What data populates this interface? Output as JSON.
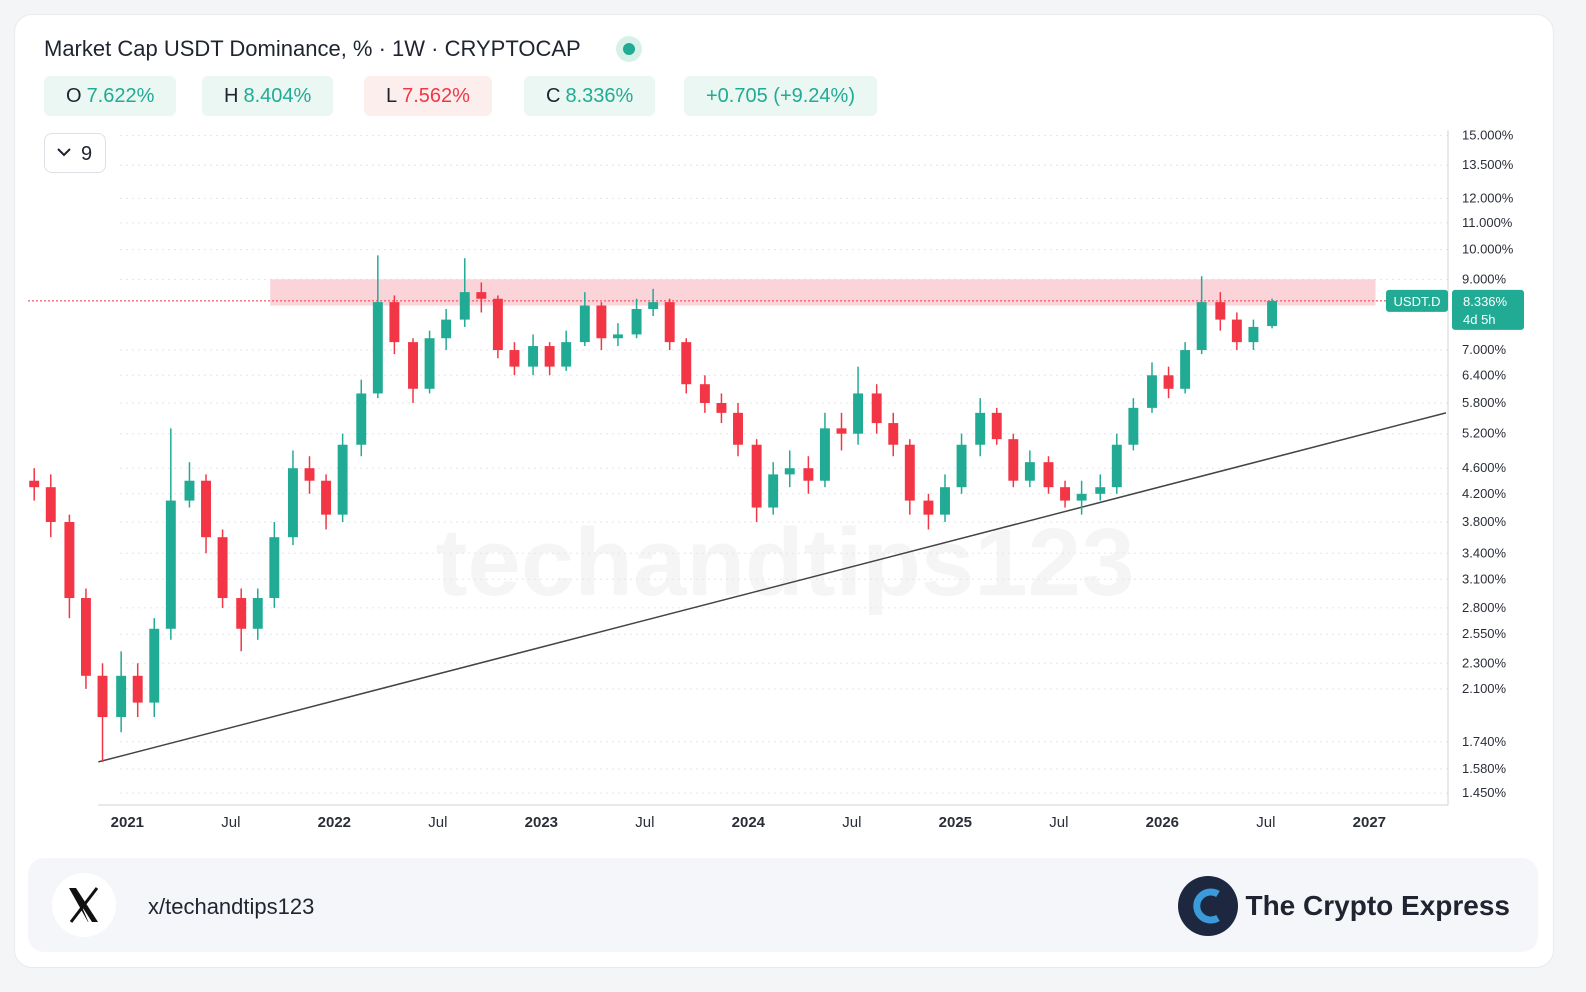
{
  "chart_data": {
    "type": "candlestick",
    "title": "Market Cap USDT Dominance, % · 1W · CRYPTOCAP",
    "ohlc_legend": [
      {
        "key": "O",
        "text": "7.622%",
        "color": "#22ab94"
      },
      {
        "key": "H",
        "text": "8.404%",
        "color": "#22ab94"
      },
      {
        "key": "L",
        "text": "7.562%",
        "color": "#f23645"
      },
      {
        "key": "C",
        "text": "8.336%",
        "color": "#22ab94"
      }
    ],
    "change": "+0.705 (+9.24%)",
    "indicator_count": "9",
    "watermark": "techandtips123",
    "symbol": "USDT.D",
    "price_label": "8.336%",
    "countdown": "4d 5h",
    "up_color": "#22ab94",
    "down_color": "#f23645",
    "log_scale": true,
    "grid": true,
    "xlim": [
      2020.52,
      2027.38
    ],
    "ylim": [
      1.39,
      15.3
    ],
    "xticks": [
      {
        "value": 2021,
        "label": "2021"
      },
      {
        "value": 2021.5,
        "label": "Jul"
      },
      {
        "value": 2022,
        "label": "2022"
      },
      {
        "value": 2022.5,
        "label": "Jul"
      },
      {
        "value": 2023,
        "label": "2023"
      },
      {
        "value": 2023.5,
        "label": "Jul"
      },
      {
        "value": 2024,
        "label": "2024"
      },
      {
        "value": 2024.5,
        "label": "Jul"
      },
      {
        "value": 2025,
        "label": "2025"
      },
      {
        "value": 2025.5,
        "label": "Jul"
      },
      {
        "value": 2026,
        "label": "2026"
      },
      {
        "value": 2026.5,
        "label": "Jul"
      },
      {
        "value": 2027,
        "label": "2027"
      }
    ],
    "yticks": [
      {
        "value": 15,
        "label": "15.000%"
      },
      {
        "value": 13.5,
        "label": "13.500%"
      },
      {
        "value": 12,
        "label": "12.000%"
      },
      {
        "value": 11,
        "label": "11.000%"
      },
      {
        "value": 10,
        "label": "10.000%"
      },
      {
        "value": 9,
        "label": "9.000%"
      },
      {
        "value": 7,
        "label": "7.000%"
      },
      {
        "value": 6.4,
        "label": "6.400%"
      },
      {
        "value": 5.8,
        "label": "5.800%"
      },
      {
        "value": 5.2,
        "label": "5.200%"
      },
      {
        "value": 4.6,
        "label": "4.600%"
      },
      {
        "value": 4.2,
        "label": "4.200%"
      },
      {
        "value": 3.8,
        "label": "3.800%"
      },
      {
        "value": 3.4,
        "label": "3.400%"
      },
      {
        "value": 3.1,
        "label": "3.100%"
      },
      {
        "value": 2.8,
        "label": "2.800%"
      },
      {
        "value": 2.55,
        "label": "2.550%"
      },
      {
        "value": 2.3,
        "label": "2.300%"
      },
      {
        "value": 2.1,
        "label": "2.100%"
      },
      {
        "value": 1.74,
        "label": "1.740%"
      },
      {
        "value": 1.58,
        "label": "1.580%"
      },
      {
        "value": 1.45,
        "label": "1.450%"
      }
    ],
    "x": [
      2020.55,
      2020.63,
      2020.72,
      2020.8,
      2020.88,
      2020.97,
      2021.05,
      2021.13,
      2021.21,
      2021.3,
      2021.38,
      2021.46,
      2021.55,
      2021.63,
      2021.71,
      2021.8,
      2021.88,
      2021.96,
      2022.04,
      2022.13,
      2022.21,
      2022.29,
      2022.38,
      2022.46,
      2022.54,
      2022.63,
      2022.71,
      2022.79,
      2022.87,
      2022.96,
      2023.04,
      2023.12,
      2023.21,
      2023.29,
      2023.37,
      2023.46,
      2023.54,
      2023.62,
      2023.7,
      2023.79,
      2023.87,
      2023.95,
      2024.04,
      2024.12,
      2024.2,
      2024.29,
      2024.37,
      2024.45,
      2024.53,
      2024.62,
      2024.7,
      2024.78,
      2024.87,
      2024.95,
      2025.03,
      2025.12,
      2025.2,
      2025.28,
      2025.36,
      2025.45,
      2025.53,
      2025.61,
      2025.7,
      2025.78,
      2025.86,
      2025.95,
      2026.03,
      2026.11,
      2026.19,
      2026.28,
      2026.36,
      2026.44,
      2026.53
    ],
    "open": [
      4.4,
      4.3,
      3.8,
      2.9,
      2.2,
      1.9,
      2.2,
      2.0,
      2.6,
      4.1,
      4.4,
      3.6,
      2.9,
      2.6,
      2.9,
      3.6,
      4.6,
      4.4,
      3.9,
      5.0,
      6.0,
      8.3,
      7.2,
      6.1,
      7.3,
      7.8,
      8.6,
      8.4,
      7.0,
      6.6,
      7.1,
      6.6,
      7.2,
      8.2,
      7.3,
      7.4,
      8.1,
      8.3,
      7.2,
      6.2,
      5.8,
      5.6,
      5.0,
      4.0,
      4.5,
      4.6,
      4.4,
      5.3,
      5.2,
      6.0,
      5.4,
      5.0,
      4.1,
      3.9,
      4.3,
      5.0,
      5.6,
      5.1,
      4.4,
      4.7,
      4.3,
      4.1,
      4.2,
      4.3,
      5.0,
      5.7,
      6.4,
      6.1,
      7.0,
      8.3,
      7.8,
      7.2,
      7.622
    ],
    "high": [
      4.6,
      4.5,
      3.9,
      3.0,
      2.3,
      2.4,
      2.3,
      2.7,
      5.3,
      4.7,
      4.5,
      3.7,
      3.0,
      3.0,
      3.8,
      4.9,
      4.8,
      4.5,
      5.2,
      6.3,
      9.8,
      8.5,
      7.3,
      7.5,
      8.1,
      9.7,
      8.9,
      8.5,
      7.2,
      7.4,
      7.2,
      7.5,
      8.6,
      8.3,
      7.7,
      8.4,
      8.7,
      8.4,
      7.3,
      6.4,
      6.0,
      5.8,
      5.1,
      4.7,
      4.9,
      4.8,
      5.6,
      5.6,
      6.6,
      6.2,
      5.6,
      5.1,
      4.2,
      4.5,
      5.2,
      5.9,
      5.7,
      5.2,
      4.9,
      4.8,
      4.4,
      4.4,
      4.5,
      5.2,
      5.9,
      6.7,
      6.6,
      7.2,
      9.1,
      8.6,
      8.0,
      7.8,
      8.404
    ],
    "low": [
      4.1,
      3.6,
      2.7,
      2.1,
      1.62,
      1.8,
      1.9,
      1.9,
      2.5,
      4.0,
      3.4,
      2.8,
      2.4,
      2.5,
      2.8,
      3.5,
      4.2,
      3.7,
      3.8,
      4.8,
      5.9,
      6.9,
      5.8,
      6.0,
      7.0,
      7.6,
      8.0,
      6.8,
      6.4,
      6.4,
      6.4,
      6.5,
      7.1,
      7.0,
      7.1,
      7.3,
      7.9,
      7.0,
      6.0,
      5.6,
      5.4,
      4.8,
      3.8,
      3.9,
      4.3,
      4.2,
      4.3,
      4.9,
      5.0,
      5.2,
      4.8,
      3.9,
      3.7,
      3.8,
      4.2,
      4.8,
      5.0,
      4.3,
      4.3,
      4.2,
      4.0,
      3.9,
      4.1,
      4.2,
      4.9,
      5.6,
      5.9,
      6.0,
      6.9,
      7.5,
      7.0,
      7.0,
      7.562
    ],
    "close": [
      4.3,
      3.8,
      2.9,
      2.2,
      1.9,
      2.2,
      2.0,
      2.6,
      4.1,
      4.4,
      3.6,
      2.9,
      2.6,
      2.9,
      3.6,
      4.6,
      4.4,
      3.9,
      5.0,
      6.0,
      8.3,
      7.2,
      6.1,
      7.3,
      7.8,
      8.6,
      8.4,
      7.0,
      6.6,
      7.1,
      6.6,
      7.2,
      8.2,
      7.3,
      7.4,
      8.1,
      8.3,
      7.2,
      6.2,
      5.8,
      5.6,
      5.0,
      4.0,
      4.5,
      4.6,
      4.4,
      5.3,
      5.2,
      6.0,
      5.4,
      5.0,
      4.1,
      3.9,
      4.3,
      5.0,
      5.6,
      5.1,
      4.4,
      4.7,
      4.3,
      4.1,
      4.2,
      4.3,
      5.0,
      5.7,
      6.4,
      6.1,
      7.0,
      8.3,
      7.8,
      7.2,
      7.6,
      8.336
    ],
    "zone": {
      "x": [
        2021.69,
        2027.03
      ],
      "y": [
        8.2,
        9.0
      ],
      "color": "#f9c6cc"
    },
    "trendline": {
      "x": [
        2020.86,
        2027.37
      ],
      "y": [
        1.62,
        5.6
      ],
      "color": "#444444"
    }
  },
  "footer": {
    "handle": "x/techandtips123",
    "brand": "The Crypto Express"
  }
}
